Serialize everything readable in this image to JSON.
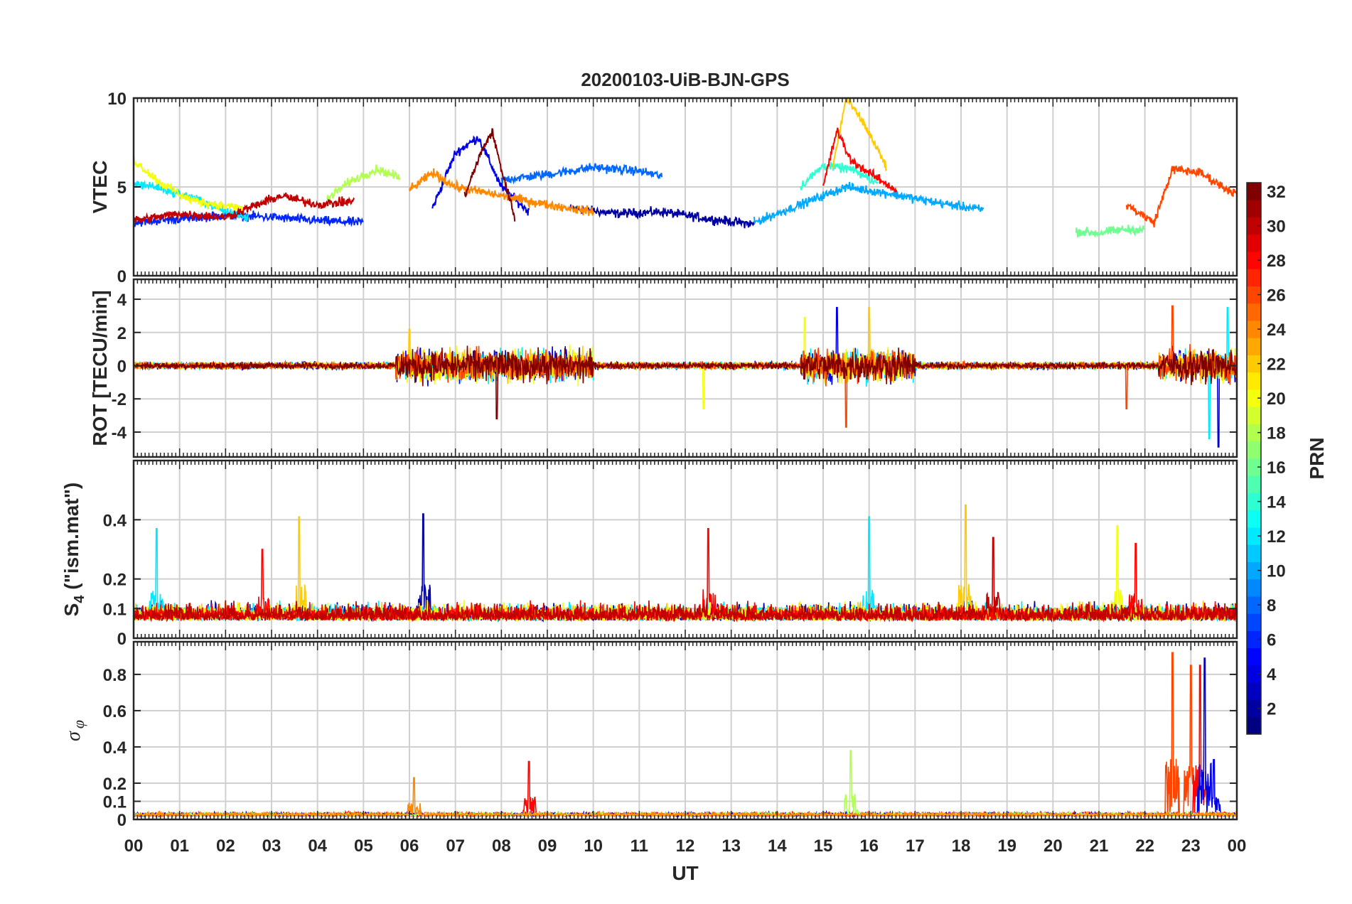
{
  "figure": {
    "title": "20200103-UiB-BJN-GPS",
    "xlabel": "UT",
    "x_tick_labels": [
      "00",
      "01",
      "02",
      "03",
      "04",
      "05",
      "06",
      "07",
      "08",
      "09",
      "10",
      "11",
      "12",
      "13",
      "14",
      "15",
      "16",
      "17",
      "18",
      "19",
      "20",
      "21",
      "22",
      "23",
      "00"
    ]
  },
  "colorbar": {
    "label": "PRN",
    "range": [
      1,
      32
    ],
    "tick_labels": [
      "2",
      "4",
      "6",
      "8",
      "10",
      "12",
      "14",
      "16",
      "18",
      "20",
      "22",
      "24",
      "26",
      "28",
      "30",
      "32"
    ],
    "colormap": "jet"
  },
  "chart_data": [
    {
      "id": "vtec",
      "type": "line",
      "ylabel": "VTEC",
      "ylim": [
        0,
        10
      ],
      "y_ticks": [
        0,
        5,
        10
      ],
      "y_tick_labels": [
        "0",
        "5",
        "10"
      ],
      "x_range_hours": [
        0,
        24
      ],
      "grid": true,
      "series": [
        {
          "prn": 2,
          "segments": [
            {
              "t": [
                9.5,
                10.5,
                11.5,
                12.5,
                13.5
              ],
              "v": [
                3.8,
                3.5,
                3.6,
                3.2,
                2.9
              ]
            }
          ]
        },
        {
          "prn": 4,
          "segments": [
            {
              "t": [
                6.5,
                7.0,
                7.5,
                8.0,
                8.6
              ],
              "v": [
                3.8,
                6.9,
                7.8,
                5.0,
                3.6
              ]
            }
          ]
        },
        {
          "prn": 6,
          "segments": [
            {
              "t": [
                0.0,
                1.0,
                2.0,
                3.0,
                4.0,
                5.0
              ],
              "v": [
                3.0,
                3.2,
                3.4,
                3.3,
                3.1,
                3.0
              ]
            }
          ]
        },
        {
          "prn": 8,
          "segments": [
            {
              "t": [
                8.0,
                9.0,
                10.0,
                11.0,
                11.5
              ],
              "v": [
                5.4,
                5.7,
                6.1,
                5.9,
                5.6
              ]
            }
          ]
        },
        {
          "prn": 10,
          "segments": [
            {
              "t": [
                13.5,
                14.5,
                15.5,
                16.5,
                17.5,
                18.5
              ],
              "v": [
                3.0,
                4.0,
                5.0,
                4.6,
                4.1,
                3.7
              ]
            }
          ]
        },
        {
          "prn": 12,
          "segments": [
            {
              "t": [
                0.0,
                0.5,
                1.0,
                1.5,
                2.0,
                2.5
              ],
              "v": [
                5.2,
                5.0,
                4.6,
                4.2,
                3.6,
                3.3
              ]
            }
          ]
        },
        {
          "prn": 14,
          "segments": [
            {
              "t": [
                14.5,
                15.0,
                15.6,
                16.2
              ],
              "v": [
                5.0,
                6.2,
                6.0,
                5.2
              ]
            }
          ]
        },
        {
          "prn": 16,
          "segments": [
            {
              "t": [
                20.5,
                21.0,
                21.5,
                22.0
              ],
              "v": [
                2.5,
                2.4,
                2.6,
                2.6
              ]
            }
          ]
        },
        {
          "prn": 18,
          "segments": [
            {
              "t": [
                4.2,
                4.7,
                5.3,
                5.8
              ],
              "v": [
                4.3,
                5.3,
                6.0,
                5.5
              ]
            }
          ]
        },
        {
          "prn": 20,
          "segments": [
            {
              "t": [
                0.0,
                0.6,
                1.2,
                1.8,
                2.4
              ],
              "v": [
                6.5,
                5.2,
                4.3,
                4.0,
                3.8
              ]
            }
          ]
        },
        {
          "prn": 22,
          "segments": [
            {
              "t": [
                15.2,
                15.5,
                15.9,
                16.4
              ],
              "v": [
                6.0,
                10.0,
                8.5,
                6.0
              ]
            }
          ]
        },
        {
          "prn": 24,
          "segments": [
            {
              "t": [
                6.0,
                6.5,
                7.0,
                8.0,
                9.0,
                10.0
              ],
              "v": [
                4.8,
                5.8,
                5.0,
                4.5,
                4.0,
                3.6
              ]
            }
          ]
        },
        {
          "prn": 26,
          "segments": [
            {
              "t": [
                21.6,
                22.2,
                22.6,
                23.2,
                23.7,
                24.0
              ],
              "v": [
                4.0,
                3.0,
                6.0,
                5.8,
                5.0,
                4.6
              ]
            }
          ]
        },
        {
          "prn": 28,
          "segments": [
            {
              "t": [
                15.0,
                15.3,
                15.6,
                16.0,
                16.6
              ],
              "v": [
                5.0,
                8.2,
                6.5,
                5.8,
                4.8
              ]
            }
          ]
        },
        {
          "prn": 30,
          "segments": [
            {
              "t": [
                0.0,
                1.0,
                2.0,
                3.2,
                4.0,
                4.8
              ],
              "v": [
                3.1,
                3.5,
                3.3,
                4.5,
                4.0,
                4.2
              ]
            }
          ]
        },
        {
          "prn": 32,
          "segments": [
            {
              "t": [
                7.2,
                7.6,
                7.8,
                8.0,
                8.3
              ],
              "v": [
                4.5,
                7.2,
                8.1,
                6.0,
                3.2
              ]
            }
          ]
        }
      ]
    },
    {
      "id": "rot",
      "type": "line",
      "ylabel": "ROT [TECU/min]",
      "ylim": [
        -5.5,
        5.2
      ],
      "y_ticks": [
        -4,
        -2,
        0,
        2,
        4
      ],
      "y_tick_labels": [
        "-4",
        "-2",
        "0",
        "2",
        "4"
      ],
      "x_range_hours": [
        0,
        24
      ],
      "grid": true,
      "series": [
        {
          "prn": 4,
          "peaks": [
            {
              "t": 15.3,
              "v": 3.5
            },
            {
              "t": 23.6,
              "v": -4.9
            }
          ]
        },
        {
          "prn": 12,
          "peaks": [
            {
              "t": 23.4,
              "v": -4.4
            },
            {
              "t": 23.8,
              "v": 3.5
            }
          ]
        },
        {
          "prn": 20,
          "peaks": [
            {
              "t": 14.6,
              "v": 2.9
            },
            {
              "t": 12.4,
              "v": -2.6
            }
          ]
        },
        {
          "prn": 22,
          "peaks": [
            {
              "t": 16.0,
              "v": 3.5
            },
            {
              "t": 6.0,
              "v": 2.2
            }
          ]
        },
        {
          "prn": 26,
          "peaks": [
            {
              "t": 15.5,
              "v": -3.7
            },
            {
              "t": 22.6,
              "v": 3.6
            },
            {
              "t": 21.6,
              "v": -2.6
            }
          ]
        },
        {
          "prn": 32,
          "peaks": [
            {
              "t": 7.9,
              "v": -3.2
            }
          ]
        }
      ]
    },
    {
      "id": "s4",
      "type": "line",
      "ylabel": "S4 (\"ism.mat\")",
      "ylim": [
        0,
        0.6
      ],
      "y_ticks": [
        0,
        0.1,
        0.2,
        0.4
      ],
      "y_tick_labels": [
        "0",
        "0.1",
        "0.2",
        "0.4"
      ],
      "x_range_hours": [
        0,
        24
      ],
      "grid": true,
      "series": [
        {
          "prn": 2,
          "peaks": [
            {
              "t": 6.3,
              "v": 0.42
            }
          ]
        },
        {
          "prn": 12,
          "peaks": [
            {
              "t": 0.5,
              "v": 0.37
            },
            {
              "t": 16.0,
              "v": 0.41
            }
          ]
        },
        {
          "prn": 22,
          "peaks": [
            {
              "t": 3.6,
              "v": 0.41
            },
            {
              "t": 18.1,
              "v": 0.45
            }
          ]
        },
        {
          "prn": 20,
          "peaks": [
            {
              "t": 21.4,
              "v": 0.38
            }
          ]
        },
        {
          "prn": 28,
          "peaks": [
            {
              "t": 12.5,
              "v": 0.37
            },
            {
              "t": 2.8,
              "v": 0.3
            },
            {
              "t": 21.8,
              "v": 0.32
            }
          ]
        },
        {
          "prn": 30,
          "peaks": [
            {
              "t": 18.7,
              "v": 0.34
            }
          ]
        }
      ]
    },
    {
      "id": "sigma_phi",
      "type": "line",
      "ylabel": "σ_φ",
      "ylim": [
        0,
        0.98
      ],
      "y_ticks": [
        0,
        0.1,
        0.2,
        0.4,
        0.6,
        0.8
      ],
      "y_tick_labels": [
        "0",
        "0.1",
        "0.2",
        "0.4",
        "0.6",
        "0.8"
      ],
      "x_range_hours": [
        0,
        24
      ],
      "grid": true,
      "series": [
        {
          "prn": 26,
          "peaks": [
            {
              "t": 22.6,
              "v": 0.92
            },
            {
              "t": 23.0,
              "v": 0.85
            }
          ]
        },
        {
          "prn": 28,
          "peaks": [
            {
              "t": 8.6,
              "v": 0.32
            },
            {
              "t": 23.2,
              "v": 0.85
            }
          ]
        },
        {
          "prn": 4,
          "peaks": [
            {
              "t": 23.3,
              "v": 0.89
            },
            {
              "t": 23.5,
              "v": 0.33
            }
          ]
        },
        {
          "prn": 18,
          "peaks": [
            {
              "t": 15.6,
              "v": 0.38
            }
          ]
        },
        {
          "prn": 24,
          "peaks": [
            {
              "t": 6.1,
              "v": 0.23
            }
          ]
        }
      ]
    }
  ]
}
